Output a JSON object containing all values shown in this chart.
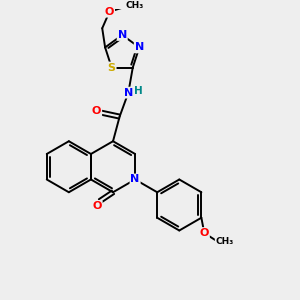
{
  "bg_color": "#eeeeee",
  "atom_color_N": "#0000ff",
  "atom_color_O": "#ff0000",
  "atom_color_S": "#ccaa00",
  "atom_color_H": "#008888",
  "bond_color": "#000000",
  "figsize": [
    3.0,
    3.0
  ],
  "dpi": 100,
  "xlim": [
    0,
    10
  ],
  "ylim": [
    0,
    10
  ]
}
